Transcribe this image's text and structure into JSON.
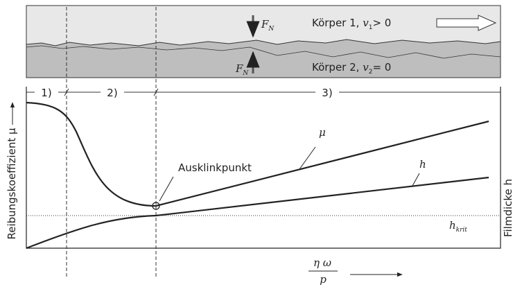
{
  "bodies": [
    {
      "name": "Körper 1,",
      "variable": "v",
      "subscript": "1",
      "condition": "> 0"
    },
    {
      "name": "Körper 2,",
      "variable": "v",
      "subscript": "2",
      "condition": "= 0"
    }
  ],
  "force": {
    "symbol": "F",
    "subscript": "N"
  },
  "regions": [
    "1)",
    "2)",
    "3)"
  ],
  "y_label": "Reibungskoeffizient μ",
  "y2_label": "Filmdicke h",
  "curve_labels": {
    "friction": "μ",
    "film": "h"
  },
  "annotation": "Ausklinkpunkt",
  "critical": {
    "symbol": "h",
    "subscript": "krit"
  },
  "x_label": {
    "numerator": "η ω",
    "denominator": "p"
  }
}
